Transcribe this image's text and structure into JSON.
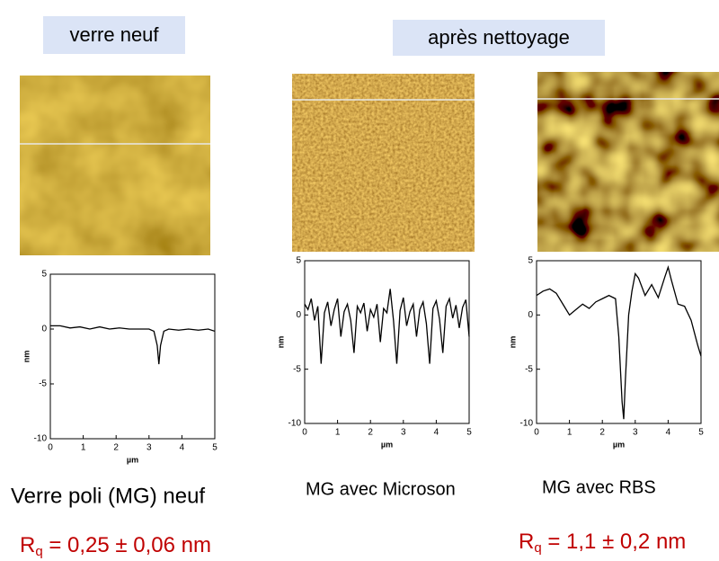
{
  "labels": {
    "left": "verre neuf",
    "right": "après nettoyage"
  },
  "chart_data": [
    {
      "type": "line",
      "xlabel": "µm",
      "ylabel": "nm",
      "color": "#000000",
      "x": [
        0,
        0.3,
        0.6,
        0.9,
        1.2,
        1.5,
        1.8,
        2.1,
        2.4,
        2.7,
        3.0,
        3.15,
        3.25,
        3.3,
        3.35,
        3.45,
        3.6,
        3.9,
        4.2,
        4.5,
        4.8,
        5
      ],
      "values": [
        0.3,
        0.3,
        0.1,
        0.2,
        0,
        0.2,
        0,
        0.1,
        0,
        0,
        0,
        -0.2,
        -1.5,
        -3.2,
        -1.5,
        -0.2,
        0,
        -0.1,
        0,
        -0.1,
        0,
        -0.2
      ],
      "xlim": [
        0,
        5
      ],
      "ylim": [
        -10,
        5
      ],
      "xticks": [
        0,
        1,
        2,
        3,
        4,
        5
      ],
      "yticks": [
        -10,
        -5,
        0,
        5
      ]
    },
    {
      "type": "line",
      "xlabel": "µm",
      "ylabel": "nm",
      "color": "#000000",
      "x": [
        0,
        0.1,
        0.2,
        0.3,
        0.4,
        0.5,
        0.6,
        0.7,
        0.8,
        0.9,
        1,
        1.1,
        1.2,
        1.3,
        1.4,
        1.5,
        1.6,
        1.7,
        1.8,
        1.9,
        2,
        2.1,
        2.2,
        2.3,
        2.4,
        2.5,
        2.6,
        2.7,
        2.8,
        2.9,
        3,
        3.1,
        3.2,
        3.3,
        3.4,
        3.5,
        3.6,
        3.7,
        3.8,
        3.9,
        4,
        4.1,
        4.2,
        4.3,
        4.4,
        4.5,
        4.6,
        4.7,
        4.8,
        4.9,
        5
      ],
      "values": [
        1,
        0.5,
        1.5,
        -0.5,
        0.8,
        -4.5,
        0.2,
        1.2,
        -1,
        0.5,
        1.5,
        -2,
        0.3,
        1,
        -0.5,
        -3.5,
        0.8,
        0.2,
        1.1,
        -1.5,
        0.5,
        -0.2,
        1,
        -2.5,
        0.6,
        0.2,
        2.4,
        -0.5,
        -4.5,
        0.4,
        1.6,
        -1,
        0.3,
        1,
        -2,
        0.5,
        1.2,
        -0.8,
        -4.5,
        0.6,
        1.3,
        -0.4,
        -3.5,
        0.8,
        1.5,
        -0.3,
        0.9,
        -1.2,
        0.7,
        1.4,
        -2
      ],
      "xlim": [
        0,
        5
      ],
      "ylim": [
        -10,
        5
      ],
      "xticks": [
        0,
        1,
        2,
        3,
        4,
        5
      ],
      "yticks": [
        -10,
        -5,
        0,
        5
      ]
    },
    {
      "type": "line",
      "xlabel": "µm",
      "ylabel": "nm",
      "color": "#000000",
      "x": [
        0,
        0.2,
        0.4,
        0.6,
        0.8,
        1.0,
        1.2,
        1.4,
        1.6,
        1.8,
        2.0,
        2.2,
        2.4,
        2.5,
        2.6,
        2.65,
        2.7,
        2.8,
        2.9,
        3.0,
        3.1,
        3.3,
        3.5,
        3.7,
        3.9,
        4.0,
        4.1,
        4.3,
        4.5,
        4.7,
        4.9,
        5
      ],
      "values": [
        1.8,
        2.2,
        2.4,
        2,
        1,
        0,
        0.5,
        1,
        0.6,
        1.2,
        1.5,
        1.8,
        1.5,
        -2,
        -8,
        -9.6,
        -6,
        0,
        2.2,
        3.8,
        3.4,
        1.8,
        2.8,
        1.6,
        3.5,
        4.4,
        3.2,
        1,
        0.8,
        -0.5,
        -2.8,
        -3.8
      ],
      "xlim": [
        0,
        5
      ],
      "ylim": [
        -10,
        5
      ],
      "xticks": [
        0,
        1,
        2,
        3,
        4,
        5
      ],
      "yticks": [
        -10,
        -5,
        0,
        5
      ]
    }
  ],
  "captions": [
    "Verre poli (MG) neuf",
    "MG avec Microson",
    "MG avec RBS"
  ],
  "roughness": [
    {
      "symbol": "R",
      "subscript": "q",
      "value": " = 0,25 ± 0,06 nm"
    },
    {
      "symbol": "R",
      "subscript": "q",
      "value": " = 1,1 ± 0,2 nm"
    }
  ]
}
